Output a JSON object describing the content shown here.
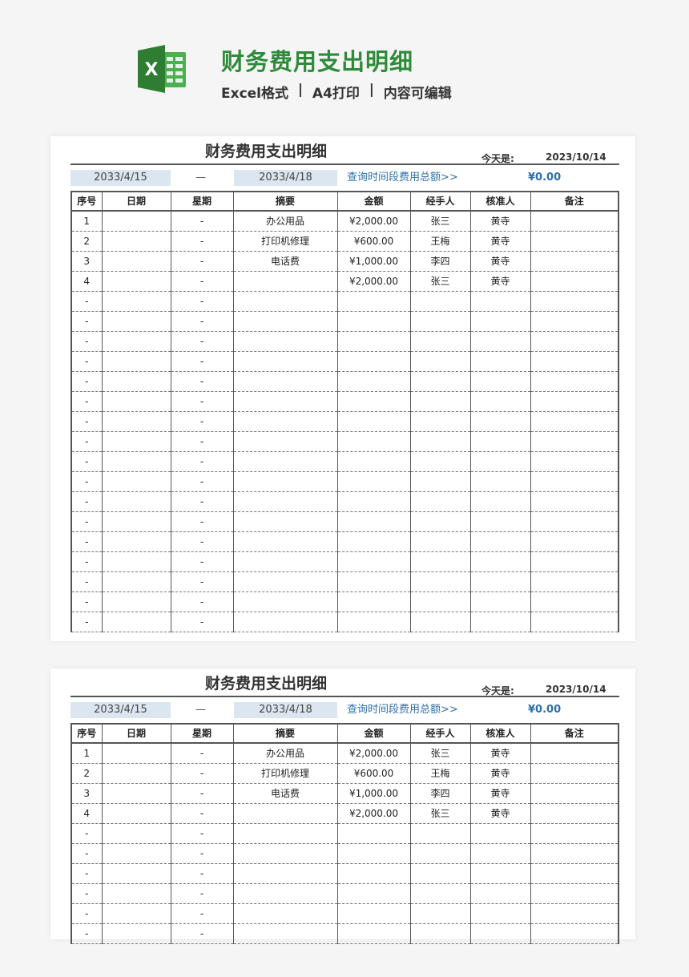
{
  "header": {
    "title": "财务费用支出明细",
    "subtitle": [
      "Excel格式",
      "  |  ",
      "A4打印",
      "  |  ",
      "内容可编辑"
    ],
    "logo_letter": "X",
    "brand_color": "#2e8b3a"
  },
  "sheet": {
    "title": "财务费用支出明细",
    "today_label": "今天是:",
    "today_value": "2023/10/14",
    "start_date": "2033/4/15",
    "separator": "—",
    "end_date": "2033/4/18",
    "query_link": "查询时间段费用总额>>",
    "query_total": "¥0.00",
    "columns": [
      "序号",
      "日期",
      "星期",
      "摘要",
      "金额",
      "经手人",
      "核准人",
      "备注"
    ],
    "rows": [
      [
        "1",
        "",
        "-",
        "办公用品",
        "¥2,000.00",
        "张三",
        "黄寺",
        ""
      ],
      [
        "2",
        "",
        "-",
        "打印机修理",
        "¥600.00",
        "王梅",
        "黄寺",
        ""
      ],
      [
        "3",
        "",
        "-",
        "电话费",
        "¥1,000.00",
        "李四",
        "黄寺",
        ""
      ],
      [
        "4",
        "",
        "-",
        "",
        "¥2,000.00",
        "张三",
        "黄寺",
        ""
      ],
      [
        "-",
        "",
        "-",
        "",
        "",
        "",
        "",
        ""
      ],
      [
        "-",
        "",
        "-",
        "",
        "",
        "",
        "",
        ""
      ],
      [
        "-",
        "",
        "-",
        "",
        "",
        "",
        "",
        ""
      ],
      [
        "-",
        "",
        "-",
        "",
        "",
        "",
        "",
        ""
      ],
      [
        "-",
        "",
        "-",
        "",
        "",
        "",
        "",
        ""
      ],
      [
        "-",
        "",
        "-",
        "",
        "",
        "",
        "",
        ""
      ],
      [
        "-",
        "",
        "-",
        "",
        "",
        "",
        "",
        ""
      ],
      [
        "-",
        "",
        "-",
        "",
        "",
        "",
        "",
        ""
      ],
      [
        "-",
        "",
        "-",
        "",
        "",
        "",
        "",
        ""
      ],
      [
        "-",
        "",
        "-",
        "",
        "",
        "",
        "",
        ""
      ],
      [
        "-",
        "",
        "-",
        "",
        "",
        "",
        "",
        ""
      ],
      [
        "-",
        "",
        "-",
        "",
        "",
        "",
        "",
        ""
      ],
      [
        "-",
        "",
        "-",
        "",
        "",
        "",
        "",
        ""
      ],
      [
        "-",
        "",
        "-",
        "",
        "",
        "",
        "",
        ""
      ],
      [
        "-",
        "",
        "-",
        "",
        "",
        "",
        "",
        ""
      ],
      [
        "-",
        "",
        "-",
        "",
        "",
        "",
        "",
        ""
      ],
      [
        "-",
        "",
        "-",
        "",
        "",
        "",
        "",
        ""
      ]
    ]
  }
}
